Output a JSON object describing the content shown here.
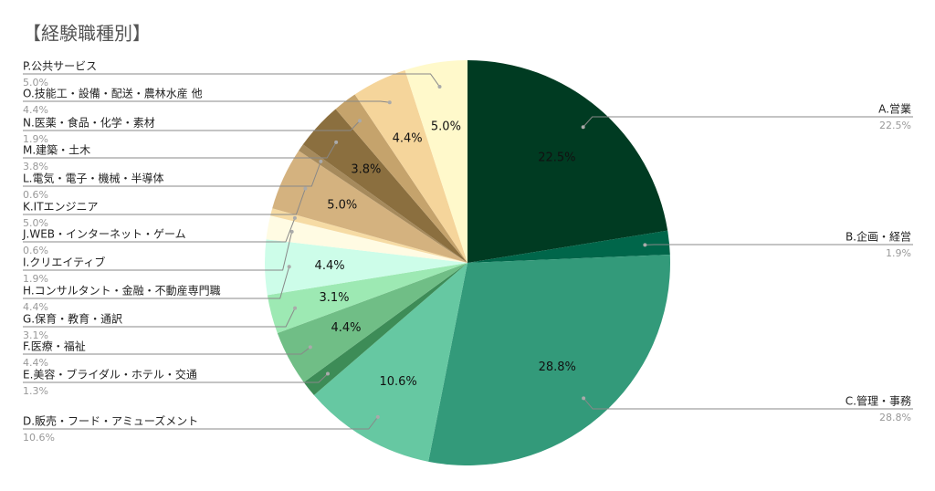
{
  "chart_data": {
    "type": "pie",
    "title": "【経験職種別】",
    "categories": [
      "A.営業",
      "B.企画・経営",
      "C.管理・事務",
      "D.販売・フード・アミューズメント",
      "E.美容・ブライダル・ホテル・交通",
      "F.医療・福祉",
      "G.保育・教育・通訳",
      "H.コンサルタント・金融・不動産専門職",
      "I.クリエイティブ",
      "J.WEB・インターネット・ゲーム",
      "K.ITエンジニア",
      "L.電気・電子・機械・半導体",
      "M.建築・土木",
      "N.医薬・食品・化学・素材",
      "O.技能工・設備・配送・農林水産 他",
      "P.公共サービス"
    ],
    "values": [
      22.5,
      1.9,
      28.8,
      10.6,
      1.3,
      4.4,
      3.1,
      4.4,
      1.9,
      0.6,
      5.0,
      0.6,
      3.8,
      1.9,
      4.4,
      5.0
    ],
    "value_labels": [
      "22.5%",
      "1.9%",
      "28.8%",
      "10.6%",
      "1.3%",
      "4.4%",
      "3.1%",
      "4.4%",
      "1.9%",
      "0.6%",
      "5.0%",
      "0.6%",
      "3.8%",
      "1.9%",
      "4.4%",
      "5.0%"
    ],
    "colors": [
      "#003b22",
      "#00664a",
      "#339a7a",
      "#66c8a2",
      "#3d8c57",
      "#70be86",
      "#9de9b3",
      "#cdfde9",
      "#fffbe3",
      "#f6dba4",
      "#d4b27f",
      "#a68a5c",
      "#8b6f3f",
      "#c5a36c",
      "#f5d59b",
      "#fff9cb"
    ]
  }
}
